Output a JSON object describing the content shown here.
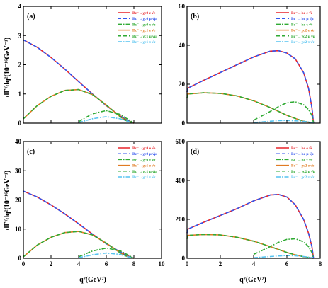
{
  "figure": {
    "x_axis_title": "q²(GeV²)",
    "y_axis_title_top": "dΓ/dq²(10⁻¹⁶GeV⁻¹)",
    "y_axis_title_bottom": "dΓ/dq²(10⁻¹⁶GeV⁻¹)"
  },
  "colors": {
    "red": "#e8242a",
    "blue": "#3355ee",
    "green": "#2faa33",
    "orange": "#e07b22",
    "cyan": "#55c3f0"
  },
  "chart_data": [
    {
      "type": "line",
      "panel": "(a)",
      "xlim": [
        0,
        10
      ],
      "ylim": [
        0,
        4
      ],
      "xticks": [
        0,
        2,
        4,
        6,
        8,
        10
      ],
      "yticks": [
        0,
        1,
        2,
        3,
        4
      ],
      "xtick_labels": [
        "",
        "",
        "",
        "",
        "",
        ""
      ],
      "ytick_labels": [
        "0",
        "1",
        "2",
        "3",
        "4"
      ],
      "x": [
        0,
        1,
        2,
        3,
        4,
        5,
        6,
        7,
        7.5,
        8
      ],
      "series": [
        {
          "name": "Bc⁻→χc0 e ν̄e",
          "color": "red",
          "dash": "solid",
          "values": [
            2.85,
            2.6,
            2.25,
            1.85,
            1.42,
            1.0,
            0.6,
            0.25,
            0.1,
            0
          ]
        },
        {
          "name": "Bc⁻→χc0 μ ν̄μ",
          "color": "blue",
          "dash": "dash",
          "values": [
            2.85,
            2.6,
            2.25,
            1.85,
            1.42,
            1.0,
            0.6,
            0.25,
            0.1,
            0
          ]
        },
        {
          "name": "Bc⁻→χc0 τ ν̄τ",
          "color": "green",
          "dash": "dashdot",
          "values": [
            null,
            null,
            null,
            null,
            0.05,
            0.32,
            0.43,
            0.3,
            0.15,
            0
          ]
        },
        {
          "name": "Bc⁻→χc1 e ν̄e",
          "color": "orange",
          "dash": "solid",
          "values": [
            0.15,
            0.6,
            0.92,
            1.12,
            1.15,
            0.98,
            0.62,
            0.22,
            0.07,
            0
          ]
        },
        {
          "name": "Bc⁻→χc1 μ ν̄μ",
          "color": "green",
          "dash": "dash",
          "values": [
            0.15,
            0.6,
            0.92,
            1.12,
            1.15,
            0.98,
            0.62,
            0.22,
            0.07,
            0
          ]
        },
        {
          "name": "Bc⁻→χc1 τ ν̄τ",
          "color": "cyan",
          "dash": "dashdot",
          "values": [
            null,
            null,
            null,
            null,
            0.02,
            0.15,
            0.22,
            0.15,
            0.07,
            0
          ]
        }
      ]
    },
    {
      "type": "line",
      "panel": "(b)",
      "xlim": [
        0,
        8
      ],
      "ylim": [
        0,
        60
      ],
      "xticks": [
        0,
        2,
        4,
        6,
        8
      ],
      "yticks": [
        0,
        20,
        40,
        60
      ],
      "xtick_labels": [
        "",
        "",
        "",
        "",
        ""
      ],
      "ytick_labels": [
        "0",
        "20",
        "40",
        "60"
      ],
      "x": [
        0,
        0.05,
        1,
        2,
        3,
        4,
        5,
        5.5,
        6,
        6.5,
        7,
        7.3,
        7.5,
        7.6
      ],
      "series": [
        {
          "name": "Bc⁻→hc e ν̄e",
          "color": "red",
          "dash": "solid",
          "values": [
            16,
            18,
            22,
            26,
            30,
            34,
            37,
            37.2,
            36,
            33,
            26,
            18,
            8,
            0
          ]
        },
        {
          "name": "Bc⁻→hc μ ν̄μ",
          "color": "blue",
          "dash": "dash",
          "values": [
            16,
            18,
            22,
            26,
            30,
            34,
            37,
            37.2,
            36,
            33,
            26,
            18,
            8,
            0
          ]
        },
        {
          "name": "Bc⁻→hc τ ν̄τ",
          "color": "green",
          "dash": "dashdot",
          "values": [
            null,
            null,
            null,
            null,
            null,
            1.5,
            6,
            8.5,
            10.5,
            11,
            9.5,
            7,
            4,
            0
          ]
        },
        {
          "name": "Bc⁻→χc2 e ν̄e",
          "color": "orange",
          "dash": "solid",
          "values": [
            13,
            15,
            15.6,
            15.3,
            14,
            11.5,
            8,
            6,
            4,
            2.4,
            1,
            0.5,
            0.2,
            0
          ]
        },
        {
          "name": "Bc⁻→χc2 μ ν̄μ",
          "color": "green",
          "dash": "dash",
          "values": [
            13,
            15,
            15.6,
            15.3,
            14,
            11.5,
            8,
            6,
            4,
            2.4,
            1,
            0.5,
            0.2,
            0
          ]
        },
        {
          "name": "Bc⁻→χc2 τ ν̄τ",
          "color": "cyan",
          "dash": "dashdot",
          "values": [
            null,
            null,
            null,
            null,
            null,
            0.3,
            1,
            1.3,
            1.4,
            1.2,
            0.9,
            0.6,
            0.3,
            0
          ]
        }
      ]
    },
    {
      "type": "line",
      "panel": "(c)",
      "xlim": [
        0,
        10
      ],
      "ylim": [
        0,
        40
      ],
      "xticks": [
        0,
        2,
        4,
        6,
        8,
        10
      ],
      "yticks": [
        0,
        10,
        20,
        30,
        40
      ],
      "xtick_labels": [
        "0",
        "2",
        "4",
        "6",
        "8",
        "10"
      ],
      "ytick_labels": [
        "0",
        "10",
        "20",
        "30",
        "40"
      ],
      "x": [
        0,
        1,
        2,
        3,
        4,
        5,
        6,
        7,
        7.5,
        8
      ],
      "series": [
        {
          "name": "Bc⁻→χc0 e ν̄e",
          "color": "red",
          "dash": "solid",
          "values": [
            23,
            21,
            18.3,
            15.2,
            11.8,
            8.3,
            5,
            2.2,
            0.9,
            0
          ]
        },
        {
          "name": "Bc⁻→χc0 μ ν̄μ",
          "color": "blue",
          "dash": "dash",
          "values": [
            23,
            21,
            18.3,
            15.2,
            11.8,
            8.3,
            5,
            2.2,
            0.9,
            0
          ]
        },
        {
          "name": "Bc⁻→χc0 τ ν̄τ",
          "color": "green",
          "dash": "dashdot",
          "values": [
            null,
            null,
            null,
            null,
            0.5,
            2.5,
            3.5,
            2.6,
            1.3,
            0
          ]
        },
        {
          "name": "Bc⁻→χc1 e ν̄e",
          "color": "orange",
          "dash": "solid",
          "values": [
            0.5,
            4.5,
            7.2,
            8.8,
            9.2,
            8,
            5.2,
            1.9,
            0.6,
            0
          ]
        },
        {
          "name": "Bc⁻→χc1 μ ν̄μ",
          "color": "green",
          "dash": "dash",
          "values": [
            0.5,
            4.5,
            7.2,
            8.8,
            9.2,
            8,
            5.2,
            1.9,
            0.6,
            0
          ]
        },
        {
          "name": "Bc⁻→χc1 τ ν̄τ",
          "color": "cyan",
          "dash": "dashdot",
          "values": [
            null,
            null,
            null,
            null,
            0.2,
            1.2,
            1.8,
            1.3,
            0.6,
            0
          ]
        }
      ]
    },
    {
      "type": "line",
      "panel": "(d)",
      "xlim": [
        0,
        8
      ],
      "ylim": [
        0,
        600
      ],
      "xticks": [
        0,
        2,
        4,
        6,
        8
      ],
      "yticks": [
        0,
        200,
        400,
        600
      ],
      "xtick_labels": [
        "0",
        "2",
        "4",
        "6",
        "8"
      ],
      "ytick_labels": [
        "0",
        "200",
        "400",
        "600"
      ],
      "x": [
        0,
        0.05,
        1,
        2,
        3,
        4,
        5,
        5.5,
        6,
        6.5,
        7,
        7.3,
        7.5,
        7.6
      ],
      "series": [
        {
          "name": "Bc⁻→hc e ν̄e",
          "color": "red",
          "dash": "solid",
          "values": [
            130,
            150,
            185,
            220,
            255,
            295,
            325,
            328,
            315,
            275,
            200,
            130,
            60,
            0
          ]
        },
        {
          "name": "Bc⁻→hc μ ν̄μ",
          "color": "blue",
          "dash": "dash",
          "values": [
            130,
            150,
            185,
            220,
            255,
            295,
            325,
            328,
            315,
            275,
            200,
            130,
            60,
            0
          ]
        },
        {
          "name": "Bc⁻→hc τ ν̄τ",
          "color": "green",
          "dash": "dashdot",
          "values": [
            null,
            null,
            null,
            null,
            null,
            20,
            60,
            82,
            97,
            100,
            85,
            60,
            30,
            0
          ]
        },
        {
          "name": "Bc⁻→χc2 e ν̄e",
          "color": "orange",
          "dash": "solid",
          "values": [
            100,
            118,
            122,
            120,
            108,
            88,
            60,
            45,
            30,
            18,
            8,
            4,
            1,
            0
          ]
        },
        {
          "name": "Bc⁻→χc2 μ ν̄μ",
          "color": "green",
          "dash": "dash",
          "values": [
            100,
            118,
            122,
            120,
            108,
            88,
            60,
            45,
            30,
            18,
            8,
            4,
            1,
            0
          ]
        },
        {
          "name": "Bc⁻→χc2 τ ν̄τ",
          "color": "cyan",
          "dash": "dashdot",
          "values": [
            null,
            null,
            null,
            null,
            null,
            3,
            9,
            12,
            14,
            13,
            9,
            6,
            3,
            0
          ]
        }
      ]
    }
  ]
}
